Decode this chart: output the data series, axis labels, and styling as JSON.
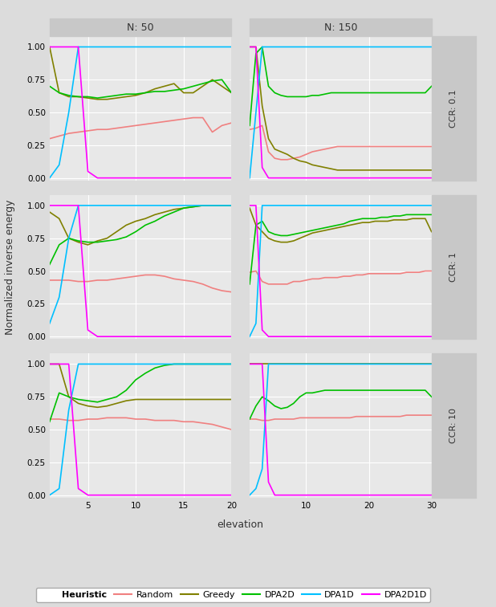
{
  "col_titles": [
    "N: 50",
    "N: 150"
  ],
  "row_titles": [
    "CCR: 0.1",
    "CCR: 1",
    "CCR: 10"
  ],
  "xlabel": "elevation",
  "ylabel": "Normalized inverse energy",
  "colors": {
    "Random": "#F08080",
    "Greedy": "#808000",
    "DPA2D": "#00C000",
    "DPA1D": "#00BFFF",
    "DPA2D1D": "#FF00FF"
  },
  "background_color": "#DCDCDC",
  "panel_bg": "#E8E8E8",
  "grid_color": "#FFFFFF",
  "strip_bg": "#C8C8C8",
  "n50_x": [
    1,
    2,
    3,
    4,
    5,
    6,
    7,
    8,
    9,
    10,
    11,
    12,
    13,
    14,
    15,
    16,
    17,
    18,
    19,
    20
  ],
  "n150_x": [
    1,
    2,
    3,
    4,
    5,
    6,
    7,
    8,
    9,
    10,
    11,
    12,
    13,
    14,
    15,
    16,
    17,
    18,
    19,
    20,
    21,
    22,
    23,
    24,
    25,
    26,
    27,
    28,
    29,
    30
  ],
  "data": {
    "n50_ccr01": {
      "Random": [
        0.3,
        0.32,
        0.34,
        0.35,
        0.36,
        0.37,
        0.37,
        0.38,
        0.39,
        0.4,
        0.41,
        0.42,
        0.43,
        0.44,
        0.45,
        0.46,
        0.46,
        0.35,
        0.4,
        0.42
      ],
      "Greedy": [
        1.0,
        0.65,
        0.62,
        0.62,
        0.61,
        0.6,
        0.6,
        0.61,
        0.62,
        0.63,
        0.65,
        0.68,
        0.7,
        0.72,
        0.65,
        0.65,
        0.7,
        0.75,
        0.7,
        0.65
      ],
      "DPA2D": [
        0.7,
        0.65,
        0.63,
        0.62,
        0.62,
        0.61,
        0.62,
        0.63,
        0.64,
        0.64,
        0.65,
        0.66,
        0.66,
        0.67,
        0.68,
        0.7,
        0.72,
        0.74,
        0.75,
        0.65
      ],
      "DPA1D": [
        0.0,
        0.1,
        0.5,
        1.0,
        1.0,
        1.0,
        1.0,
        1.0,
        1.0,
        1.0,
        1.0,
        1.0,
        1.0,
        1.0,
        1.0,
        1.0,
        1.0,
        1.0,
        1.0,
        1.0
      ],
      "DPA2D1D": [
        1.0,
        1.0,
        1.0,
        1.0,
        0.05,
        0.0,
        0.0,
        0.0,
        0.0,
        0.0,
        0.0,
        0.0,
        0.0,
        0.0,
        0.0,
        0.0,
        0.0,
        0.0,
        0.0,
        0.0
      ]
    },
    "n50_ccr1": {
      "Random": [
        0.43,
        0.43,
        0.43,
        0.42,
        0.42,
        0.43,
        0.43,
        0.44,
        0.45,
        0.46,
        0.47,
        0.47,
        0.46,
        0.44,
        0.43,
        0.42,
        0.4,
        0.37,
        0.35,
        0.34
      ],
      "Greedy": [
        0.95,
        0.9,
        0.75,
        0.72,
        0.7,
        0.73,
        0.75,
        0.8,
        0.85,
        0.88,
        0.9,
        0.93,
        0.95,
        0.97,
        0.98,
        0.99,
        1.0,
        1.0,
        1.0,
        1.0
      ],
      "DPA2D": [
        0.55,
        0.7,
        0.75,
        0.73,
        0.72,
        0.72,
        0.73,
        0.74,
        0.76,
        0.8,
        0.85,
        0.88,
        0.92,
        0.95,
        0.98,
        0.99,
        1.0,
        1.0,
        1.0,
        1.0
      ],
      "DPA1D": [
        0.1,
        0.3,
        0.75,
        1.0,
        1.0,
        1.0,
        1.0,
        1.0,
        1.0,
        1.0,
        1.0,
        1.0,
        1.0,
        1.0,
        1.0,
        1.0,
        1.0,
        1.0,
        1.0,
        1.0
      ],
      "DPA2D1D": [
        1.0,
        1.0,
        1.0,
        1.0,
        0.05,
        0.0,
        0.0,
        0.0,
        0.0,
        0.0,
        0.0,
        0.0,
        0.0,
        0.0,
        0.0,
        0.0,
        0.0,
        0.0,
        0.0,
        0.0
      ]
    },
    "n50_ccr10": {
      "Random": [
        0.58,
        0.58,
        0.57,
        0.57,
        0.58,
        0.58,
        0.59,
        0.59,
        0.59,
        0.58,
        0.58,
        0.57,
        0.57,
        0.57,
        0.56,
        0.56,
        0.55,
        0.54,
        0.52,
        0.5
      ],
      "Greedy": [
        1.0,
        1.0,
        0.75,
        0.7,
        0.68,
        0.67,
        0.68,
        0.7,
        0.72,
        0.73,
        0.73,
        0.73,
        0.73,
        0.73,
        0.73,
        0.73,
        0.73,
        0.73,
        0.73,
        0.73
      ],
      "DPA2D": [
        0.56,
        0.78,
        0.75,
        0.73,
        0.72,
        0.71,
        0.73,
        0.75,
        0.8,
        0.88,
        0.93,
        0.97,
        0.99,
        1.0,
        1.0,
        1.0,
        1.0,
        1.0,
        1.0,
        1.0
      ],
      "DPA1D": [
        0.0,
        0.05,
        0.65,
        1.0,
        1.0,
        1.0,
        1.0,
        1.0,
        1.0,
        1.0,
        1.0,
        1.0,
        1.0,
        1.0,
        1.0,
        1.0,
        1.0,
        1.0,
        1.0,
        1.0
      ],
      "DPA2D1D": [
        1.0,
        1.0,
        1.0,
        0.05,
        0.0,
        0.0,
        0.0,
        0.0,
        0.0,
        0.0,
        0.0,
        0.0,
        0.0,
        0.0,
        0.0,
        0.0,
        0.0,
        0.0,
        0.0,
        0.0
      ]
    },
    "n150_ccr01": {
      "Random": [
        0.37,
        0.38,
        0.4,
        0.2,
        0.15,
        0.14,
        0.14,
        0.15,
        0.16,
        0.18,
        0.2,
        0.21,
        0.22,
        0.23,
        0.24,
        0.24,
        0.24,
        0.24,
        0.24,
        0.24,
        0.24,
        0.24,
        0.24,
        0.24,
        0.24,
        0.24,
        0.24,
        0.24,
        0.24,
        0.24
      ],
      "Greedy": [
        1.0,
        1.0,
        0.55,
        0.3,
        0.22,
        0.2,
        0.18,
        0.15,
        0.13,
        0.12,
        0.1,
        0.09,
        0.08,
        0.07,
        0.06,
        0.06,
        0.06,
        0.06,
        0.06,
        0.06,
        0.06,
        0.06,
        0.06,
        0.06,
        0.06,
        0.06,
        0.06,
        0.06,
        0.06,
        0.06
      ],
      "DPA2D": [
        0.4,
        0.95,
        1.0,
        0.7,
        0.65,
        0.63,
        0.62,
        0.62,
        0.62,
        0.62,
        0.63,
        0.63,
        0.64,
        0.65,
        0.65,
        0.65,
        0.65,
        0.65,
        0.65,
        0.65,
        0.65,
        0.65,
        0.65,
        0.65,
        0.65,
        0.65,
        0.65,
        0.65,
        0.65,
        0.7
      ],
      "DPA1D": [
        0.0,
        0.5,
        1.0,
        1.0,
        1.0,
        1.0,
        1.0,
        1.0,
        1.0,
        1.0,
        1.0,
        1.0,
        1.0,
        1.0,
        1.0,
        1.0,
        1.0,
        1.0,
        1.0,
        1.0,
        1.0,
        1.0,
        1.0,
        1.0,
        1.0,
        1.0,
        1.0,
        1.0,
        1.0,
        1.0
      ],
      "DPA2D1D": [
        1.0,
        1.0,
        0.08,
        0.0,
        0.0,
        0.0,
        0.0,
        0.0,
        0.0,
        0.0,
        0.0,
        0.0,
        0.0,
        0.0,
        0.0,
        0.0,
        0.0,
        0.0,
        0.0,
        0.0,
        0.0,
        0.0,
        0.0,
        0.0,
        0.0,
        0.0,
        0.0,
        0.0,
        0.0,
        0.0
      ]
    },
    "n150_ccr1": {
      "Random": [
        0.49,
        0.5,
        0.42,
        0.4,
        0.4,
        0.4,
        0.4,
        0.42,
        0.42,
        0.43,
        0.44,
        0.44,
        0.45,
        0.45,
        0.45,
        0.46,
        0.46,
        0.47,
        0.47,
        0.48,
        0.48,
        0.48,
        0.48,
        0.48,
        0.48,
        0.49,
        0.49,
        0.49,
        0.5,
        0.5
      ],
      "Greedy": [
        0.98,
        0.85,
        0.8,
        0.75,
        0.73,
        0.72,
        0.72,
        0.73,
        0.75,
        0.77,
        0.79,
        0.8,
        0.81,
        0.82,
        0.83,
        0.84,
        0.85,
        0.86,
        0.87,
        0.87,
        0.88,
        0.88,
        0.88,
        0.89,
        0.89,
        0.89,
        0.9,
        0.9,
        0.9,
        0.8
      ],
      "DPA2D": [
        0.4,
        0.85,
        0.88,
        0.8,
        0.78,
        0.77,
        0.77,
        0.78,
        0.79,
        0.8,
        0.81,
        0.82,
        0.83,
        0.84,
        0.85,
        0.86,
        0.88,
        0.89,
        0.9,
        0.9,
        0.9,
        0.91,
        0.91,
        0.92,
        0.92,
        0.93,
        0.93,
        0.93,
        0.93,
        0.93
      ],
      "DPA1D": [
        0.0,
        0.1,
        1.0,
        1.0,
        1.0,
        1.0,
        1.0,
        1.0,
        1.0,
        1.0,
        1.0,
        1.0,
        1.0,
        1.0,
        1.0,
        1.0,
        1.0,
        1.0,
        1.0,
        1.0,
        1.0,
        1.0,
        1.0,
        1.0,
        1.0,
        1.0,
        1.0,
        1.0,
        1.0,
        1.0
      ],
      "DPA2D1D": [
        1.0,
        1.0,
        0.05,
        0.0,
        0.0,
        0.0,
        0.0,
        0.0,
        0.0,
        0.0,
        0.0,
        0.0,
        0.0,
        0.0,
        0.0,
        0.0,
        0.0,
        0.0,
        0.0,
        0.0,
        0.0,
        0.0,
        0.0,
        0.0,
        0.0,
        0.0,
        0.0,
        0.0,
        0.0,
        0.0
      ]
    },
    "n150_ccr10": {
      "Random": [
        0.58,
        0.58,
        0.57,
        0.57,
        0.58,
        0.58,
        0.58,
        0.58,
        0.59,
        0.59,
        0.59,
        0.59,
        0.59,
        0.59,
        0.59,
        0.59,
        0.59,
        0.6,
        0.6,
        0.6,
        0.6,
        0.6,
        0.6,
        0.6,
        0.6,
        0.61,
        0.61,
        0.61,
        0.61,
        0.61
      ],
      "Greedy": [
        1.0,
        1.0,
        1.0,
        1.0,
        1.0,
        1.0,
        1.0,
        1.0,
        1.0,
        1.0,
        1.0,
        1.0,
        1.0,
        1.0,
        1.0,
        1.0,
        1.0,
        1.0,
        1.0,
        1.0,
        1.0,
        1.0,
        1.0,
        1.0,
        1.0,
        1.0,
        1.0,
        1.0,
        1.0,
        1.0
      ],
      "DPA2D": [
        0.58,
        0.68,
        0.75,
        0.72,
        0.68,
        0.66,
        0.67,
        0.7,
        0.75,
        0.78,
        0.78,
        0.79,
        0.8,
        0.8,
        0.8,
        0.8,
        0.8,
        0.8,
        0.8,
        0.8,
        0.8,
        0.8,
        0.8,
        0.8,
        0.8,
        0.8,
        0.8,
        0.8,
        0.8,
        0.75
      ],
      "DPA1D": [
        0.0,
        0.05,
        0.2,
        1.0,
        1.0,
        1.0,
        1.0,
        1.0,
        1.0,
        1.0,
        1.0,
        1.0,
        1.0,
        1.0,
        1.0,
        1.0,
        1.0,
        1.0,
        1.0,
        1.0,
        1.0,
        1.0,
        1.0,
        1.0,
        1.0,
        1.0,
        1.0,
        1.0,
        1.0,
        1.0
      ],
      "DPA2D1D": [
        1.0,
        1.0,
        1.0,
        0.1,
        0.0,
        0.0,
        0.0,
        0.0,
        0.0,
        0.0,
        0.0,
        0.0,
        0.0,
        0.0,
        0.0,
        0.0,
        0.0,
        0.0,
        0.0,
        0.0,
        0.0,
        0.0,
        0.0,
        0.0,
        0.0,
        0.0,
        0.0,
        0.0,
        0.0,
        0.0
      ]
    }
  }
}
